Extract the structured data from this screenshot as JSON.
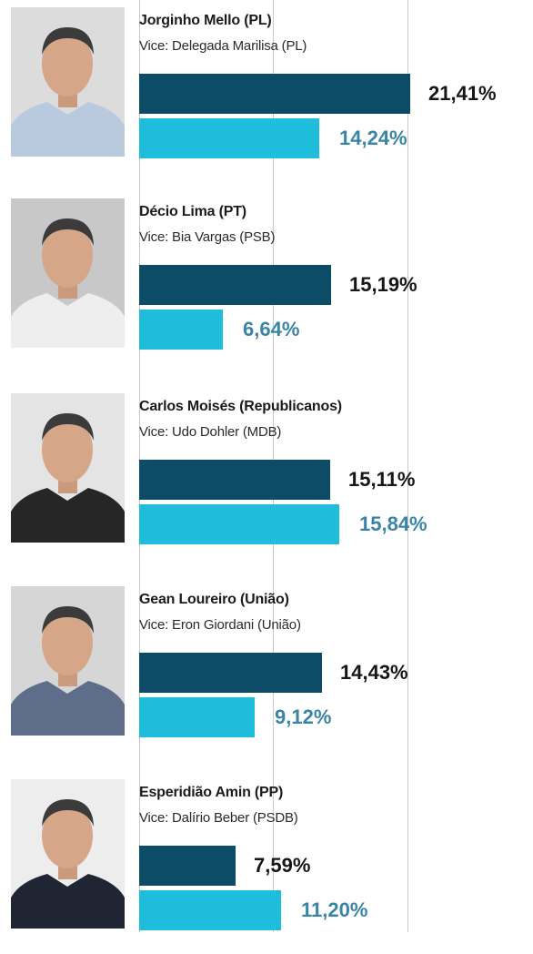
{
  "chart_data": {
    "type": "bar",
    "orientation": "horizontal",
    "series_colors": [
      "#0d4c66",
      "#1fbcdb"
    ],
    "xlim": [
      0,
      24
    ],
    "grid": true,
    "candidates": [
      {
        "name": "Jorginho Mello (PL)",
        "vice": "Vice: Delegada Marilisa (PL)",
        "values": [
          21.41,
          14.24
        ],
        "labels": [
          "21,41%",
          "14,24%"
        ],
        "photo_icon": "candidate-portrait",
        "photo_bg": "#dcdcdc",
        "shirt": "#b9c9de"
      },
      {
        "name": "Décio Lima (PT)",
        "vice": "Vice: Bia Vargas (PSB)",
        "values": [
          15.19,
          6.64
        ],
        "labels": [
          "15,19%",
          "6,64%"
        ],
        "photo_icon": "candidate-portrait",
        "photo_bg": "#c8c8c8",
        "shirt": "#eeeeee"
      },
      {
        "name": "Carlos Moisés (Republicanos)",
        "vice": "Vice: Udo Dohler (MDB)",
        "values": [
          15.11,
          15.84
        ],
        "labels": [
          "15,11%",
          "15,84%"
        ],
        "photo_icon": "candidate-portrait",
        "photo_bg": "#e4e4e4",
        "shirt": "#262626"
      },
      {
        "name": "Gean Loureiro (União)",
        "vice": "Vice: Eron Giordani (União)",
        "values": [
          14.43,
          9.12
        ],
        "labels": [
          "14,43%",
          "9,12%"
        ],
        "photo_icon": "candidate-portrait",
        "photo_bg": "#d6d6d6",
        "shirt": "#5d6d8a"
      },
      {
        "name": "Esperidião Amin (PP)",
        "vice": "Vice: Dalírio Beber (PSDB)",
        "values": [
          7.59,
          11.2
        ],
        "labels": [
          "7,59%",
          "11,20%"
        ],
        "photo_icon": "candidate-portrait",
        "photo_bg": "#ededed",
        "shirt": "#1f2533"
      }
    ]
  }
}
